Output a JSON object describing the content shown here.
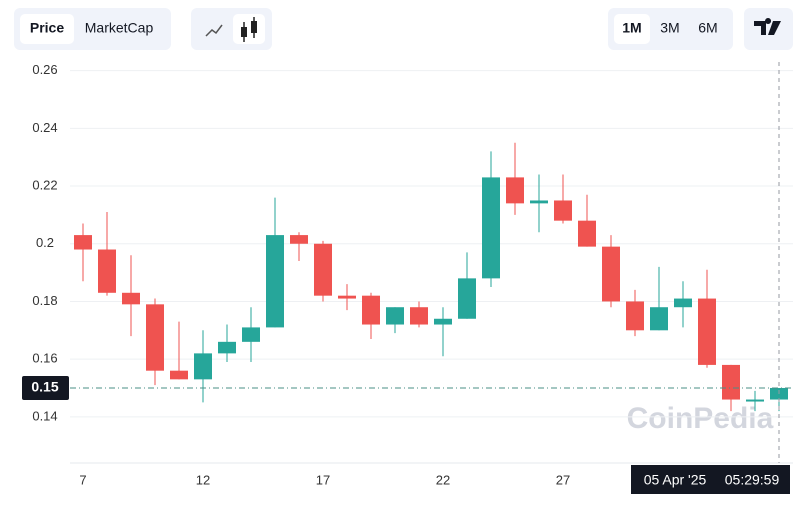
{
  "toolbar": {
    "data_tabs": [
      "Price",
      "MarketCap"
    ],
    "range_tabs": [
      "1M",
      "3M",
      "6M"
    ]
  },
  "chart_data": {
    "type": "candlestick",
    "categories": [
      "7",
      null,
      null,
      null,
      null,
      "12",
      null,
      null,
      null,
      null,
      "17",
      null,
      null,
      null,
      null,
      "22",
      null,
      null,
      null,
      null,
      "27",
      null,
      null,
      null,
      null,
      null,
      null,
      null,
      null,
      null
    ],
    "series": [
      {
        "up_color": "#26a69a",
        "down_color": "#ef5350",
        "open": [
          0.203,
          0.198,
          0.183,
          0.179,
          0.156,
          0.153,
          0.162,
          0.166,
          0.171,
          0.203,
          0.2,
          0.182,
          0.182,
          0.172,
          0.178,
          0.172,
          0.174,
          0.188,
          0.223,
          0.214,
          0.215,
          0.208,
          0.199,
          0.18,
          0.17,
          0.178,
          0.181,
          0.158,
          0.146,
          0.146
        ],
        "high": [
          0.207,
          0.211,
          0.196,
          0.181,
          0.173,
          0.17,
          0.172,
          0.178,
          0.216,
          0.204,
          0.201,
          0.186,
          0.183,
          0.178,
          0.18,
          0.178,
          0.197,
          0.232,
          0.235,
          0.224,
          0.224,
          0.217,
          0.203,
          0.184,
          0.192,
          0.187,
          0.191,
          0.158,
          0.149,
          0.15
        ],
        "low": [
          0.187,
          0.182,
          0.168,
          0.151,
          0.153,
          0.145,
          0.159,
          0.159,
          0.171,
          0.194,
          0.18,
          0.177,
          0.167,
          0.169,
          0.171,
          0.161,
          0.174,
          0.185,
          0.21,
          0.204,
          0.207,
          0.199,
          0.178,
          0.168,
          0.17,
          0.171,
          0.157,
          0.142,
          0.142,
          0.142
        ],
        "close": [
          0.198,
          0.183,
          0.179,
          0.156,
          0.153,
          0.162,
          0.166,
          0.171,
          0.203,
          0.2,
          0.182,
          0.181,
          0.172,
          0.178,
          0.172,
          0.174,
          0.188,
          0.223,
          0.214,
          0.215,
          0.208,
          0.199,
          0.18,
          0.17,
          0.178,
          0.181,
          0.158,
          0.146,
          0.146,
          0.15
        ]
      }
    ],
    "ylim": [
      0.124,
      0.263
    ],
    "yticks": [
      0.14,
      0.16,
      0.18,
      0.2,
      0.22,
      0.24,
      0.26
    ],
    "grid": true,
    "crosshair_price": 0.15,
    "crosshair_date": "05 Apr '25",
    "crosshair_time": "05:29:59",
    "watermark": "CoinPedia"
  }
}
